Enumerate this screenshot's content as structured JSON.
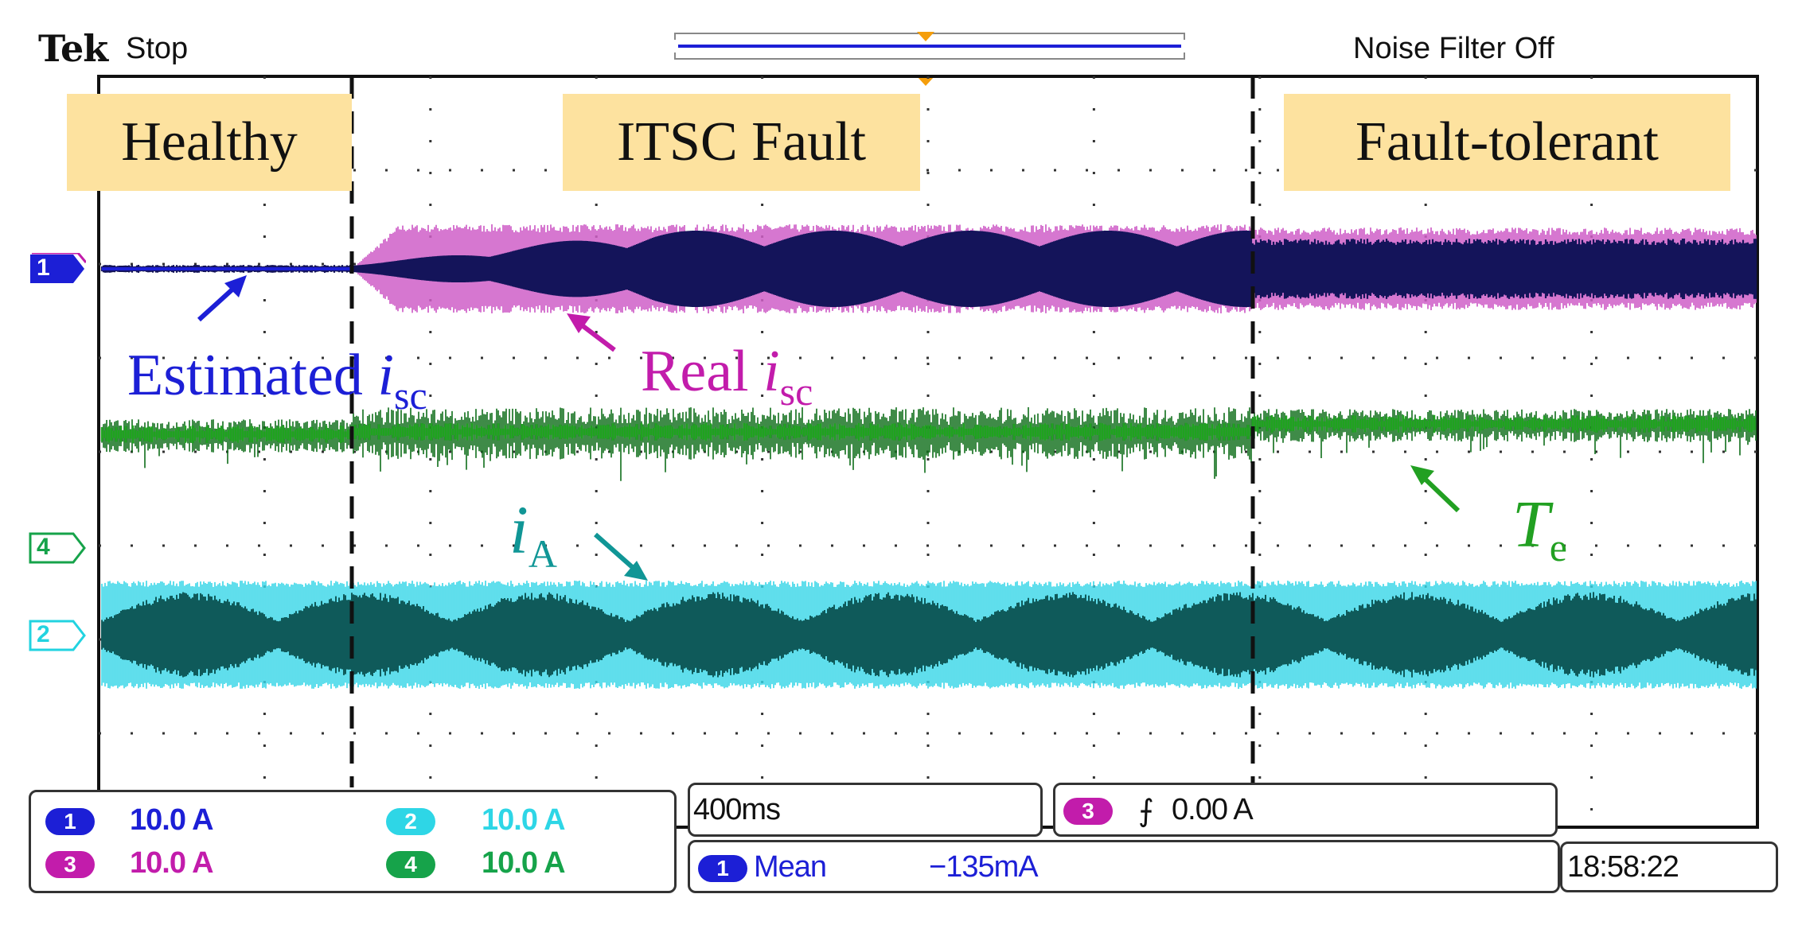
{
  "header": {
    "brand": "Tek",
    "status": "Stop",
    "noise_filter": "Noise Filter Off"
  },
  "regions": {
    "healthy": "Healthy",
    "itsc": "ITSC Fault",
    "fault_tolerant": "Fault-tolerant"
  },
  "annotations": {
    "estimated": {
      "text": "Estimated ",
      "symbol": "i",
      "sub": "sc"
    },
    "real": {
      "text": "Real ",
      "symbol": "i",
      "sub": "sc"
    },
    "phase_current": {
      "symbol": "i",
      "sub": "A"
    },
    "torque": {
      "symbol": "T",
      "sub": "e"
    }
  },
  "channel_markers": [
    {
      "number": "1",
      "color": "#1c1fd6"
    },
    {
      "number": "4",
      "color": "#16a34a"
    },
    {
      "number": "2",
      "color": "#22d3e0"
    }
  ],
  "channel_scales": [
    {
      "number": "1",
      "value": "10.0 A",
      "color": "#1c1fd6"
    },
    {
      "number": "2",
      "value": "10.0 A",
      "color": "#2ed6e6"
    },
    {
      "number": "3",
      "value": "10.0 A",
      "color": "#c21cab"
    },
    {
      "number": "4",
      "value": "10.0 A",
      "color": "#16a34a"
    }
  ],
  "timebase": "400ms",
  "trigger": {
    "channel": "3",
    "slope_symbol": "⨍",
    "level": "0.00 A"
  },
  "measurement": {
    "channel": "1",
    "type": "Mean",
    "value": "−135mA"
  },
  "clock": "18:58:22",
  "colors": {
    "ch1": "#1c1fd6",
    "ch1_dark": "#14145a",
    "ch2": "#3ad7e8",
    "ch2_dark": "#0f5a5a",
    "ch3": "#d060c8",
    "ch4": "#1fa31f",
    "ch4_dark": "#0f6e1a",
    "label_bg": "#fde29f"
  }
}
